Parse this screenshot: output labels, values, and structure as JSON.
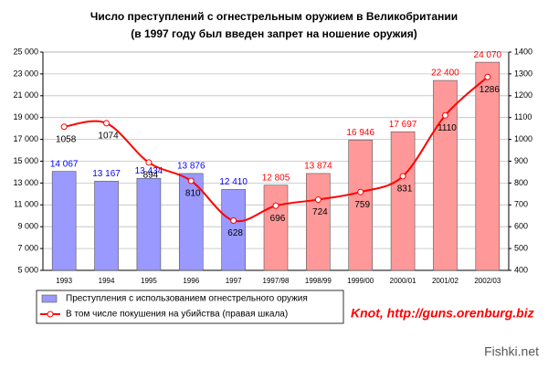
{
  "chart_data": {
    "type": "bar-line",
    "title": "Число преступлений с огнестрельным оружием в Великобритании",
    "subtitle": "(в 1997 году был введен запрет на ношение оружия)",
    "categories": [
      "1993",
      "1994",
      "1995",
      "1996",
      "1997",
      "1997/98",
      "1998/99",
      "1999/00",
      "2000/01",
      "2001/02",
      "2002/03"
    ],
    "series": [
      {
        "name": "Преступления с использованием огнестрельного оружия",
        "type": "bar",
        "color": "#9999ff",
        "colors": [
          "#9999ff",
          "#9999ff",
          "#9999ff",
          "#9999ff",
          "#9999ff",
          "#ff9999",
          "#ff9999",
          "#ff9999",
          "#ff9999",
          "#ff9999",
          "#ff9999"
        ],
        "label_colors": [
          "#0000ff",
          "#0000ff",
          "#0000ff",
          "#0000ff",
          "#0000ff",
          "#ff0000",
          "#ff0000",
          "#ff0000",
          "#ff0000",
          "#ff0000",
          "#ff0000"
        ],
        "values": [
          14067,
          13167,
          13434,
          13876,
          12410,
          12805,
          13874,
          16946,
          17697,
          22400,
          24070
        ],
        "value_labels": [
          "14 067",
          "13 167",
          "13 434",
          "13 876",
          "12 410",
          "12 805",
          "13 874",
          "16 946",
          "17 697",
          "22 400",
          "24 070"
        ]
      },
      {
        "name": "В том числе покушения на убийства (правая шкала)",
        "type": "line",
        "axis": "y2",
        "color": "#ff0000",
        "values": [
          1058,
          1074,
          894,
          810,
          628,
          696,
          724,
          759,
          831,
          1110,
          1286
        ]
      }
    ],
    "ylim": [
      5000,
      25000
    ],
    "yticks": [
      {
        "value": 5000,
        "label": "5 000"
      },
      {
        "value": 7000,
        "label": "7 000"
      },
      {
        "value": 9000,
        "label": "9 000"
      },
      {
        "value": 11000,
        "label": "11 000"
      },
      {
        "value": 13000,
        "label": "13 000"
      },
      {
        "value": 15000,
        "label": "15 000"
      },
      {
        "value": 17000,
        "label": "17 000"
      },
      {
        "value": 19000,
        "label": "19 000"
      },
      {
        "value": 21000,
        "label": "21 000"
      },
      {
        "value": 23000,
        "label": "23 000"
      },
      {
        "value": 25000,
        "label": "25 000"
      }
    ],
    "y2lim": [
      400,
      1400
    ],
    "y2ticks": [
      400,
      500,
      600,
      700,
      800,
      900,
      1000,
      1100,
      1200,
      1300,
      1400
    ],
    "grid": true,
    "annotation": "Knot, http://guns.orenburg.biz",
    "watermark": "Fishki.net"
  }
}
